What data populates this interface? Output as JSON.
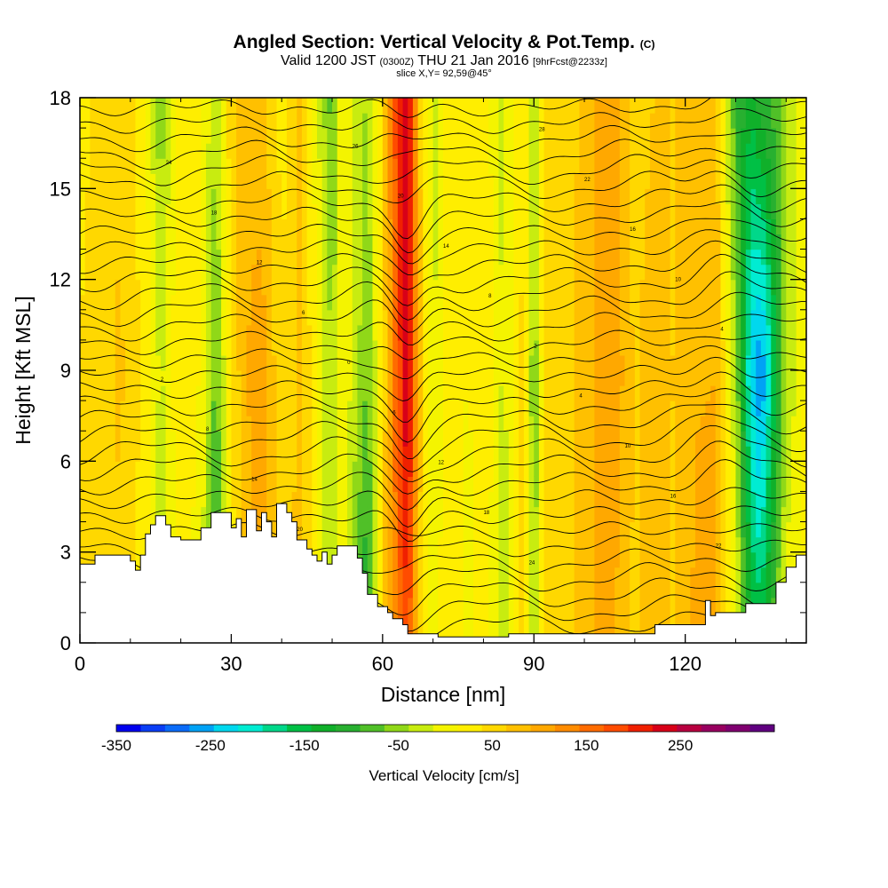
{
  "chart_data": {
    "type": "heatmap",
    "title": "Angled Section: Vertical Velocity & Pot.Temp.",
    "title_suffix": "(C)",
    "subtitle": {
      "valid_prefix": "Valid 1200 JST",
      "utc": "(0300Z)",
      "date": "THU 21 Jan 2016",
      "forecast": "[9hrFcst@2233z]"
    },
    "slice_label": "slice X,Y= 92,59@45°",
    "xlabel": "Distance [nm]",
    "ylabel": "Height [Kft MSL]",
    "xlim": [
      0,
      144
    ],
    "ylim": [
      0,
      18
    ],
    "x_ticks": [
      "0",
      "30",
      "60",
      "90",
      "120"
    ],
    "x_tick_values": [
      0,
      30,
      60,
      90,
      120
    ],
    "y_ticks": [
      "0",
      "3",
      "6",
      "9",
      "12",
      "15",
      "18"
    ],
    "y_tick_values": [
      0,
      3,
      6,
      9,
      12,
      15,
      18
    ],
    "colorbar": {
      "label": "Vertical Velocity [cm/s]",
      "tick_labels": [
        "-350",
        "-250",
        "-150",
        "-50",
        "50",
        "150",
        "250"
      ],
      "tick_values": [
        -350,
        -250,
        -150,
        -50,
        50,
        150,
        250
      ],
      "range": [
        -350,
        350
      ],
      "colors": [
        "#0000ee",
        "#0a3ef5",
        "#0b6cf8",
        "#00a2f5",
        "#00d8ee",
        "#00ecd2",
        "#00d88a",
        "#00c045",
        "#10b02a",
        "#28b030",
        "#50c028",
        "#90d818",
        "#c8ec10",
        "#f4f400",
        "#ffee00",
        "#ffd800",
        "#ffc000",
        "#ffa800",
        "#ff8c00",
        "#ff6c00",
        "#ff4c00",
        "#f02000",
        "#d80018",
        "#b80040",
        "#980060",
        "#800070",
        "#600080"
      ]
    },
    "terrain_kft": [
      [
        0,
        2.6
      ],
      [
        3,
        2.6
      ],
      [
        3,
        2.9
      ],
      [
        10,
        2.9
      ],
      [
        10,
        2.7
      ],
      [
        11,
        2.7
      ],
      [
        11,
        2.4
      ],
      [
        12,
        2.4
      ],
      [
        12,
        2.9
      ],
      [
        13,
        2.9
      ],
      [
        13,
        3.6
      ],
      [
        14,
        3.6
      ],
      [
        14,
        3.9
      ],
      [
        15,
        3.9
      ],
      [
        15,
        4.2
      ],
      [
        17,
        4.2
      ],
      [
        17,
        3.9
      ],
      [
        18,
        3.9
      ],
      [
        18,
        3.5
      ],
      [
        20,
        3.5
      ],
      [
        20,
        3.4
      ],
      [
        24,
        3.4
      ],
      [
        24,
        3.8
      ],
      [
        26,
        3.8
      ],
      [
        26,
        4.3
      ],
      [
        30,
        4.3
      ],
      [
        30,
        3.8
      ],
      [
        31,
        3.8
      ],
      [
        31,
        4.1
      ],
      [
        32,
        4.1
      ],
      [
        32,
        3.5
      ],
      [
        33,
        3.5
      ],
      [
        33,
        4.4
      ],
      [
        35,
        4.4
      ],
      [
        35,
        3.7
      ],
      [
        36,
        3.7
      ],
      [
        36,
        4.3
      ],
      [
        37,
        4.3
      ],
      [
        37,
        4.0
      ],
      [
        38,
        4.0
      ],
      [
        38,
        3.5
      ],
      [
        39,
        3.5
      ],
      [
        39,
        4.6
      ],
      [
        41,
        4.6
      ],
      [
        41,
        4.3
      ],
      [
        42,
        4.3
      ],
      [
        42,
        4.0
      ],
      [
        43,
        4.0
      ],
      [
        43,
        3.4
      ],
      [
        45,
        3.4
      ],
      [
        45,
        3.1
      ],
      [
        46,
        3.1
      ],
      [
        46,
        2.9
      ],
      [
        47,
        2.9
      ],
      [
        47,
        2.7
      ],
      [
        48,
        2.7
      ],
      [
        48,
        3.0
      ],
      [
        49,
        3.0
      ],
      [
        49,
        2.6
      ],
      [
        50,
        2.6
      ],
      [
        50,
        2.9
      ],
      [
        51,
        2.9
      ],
      [
        51,
        3.2
      ],
      [
        55,
        3.2
      ],
      [
        55,
        2.8
      ],
      [
        56,
        2.8
      ],
      [
        56,
        2.3
      ],
      [
        57,
        2.3
      ],
      [
        57,
        1.6
      ],
      [
        59,
        1.6
      ],
      [
        59,
        1.2
      ],
      [
        61,
        1.2
      ],
      [
        61,
        1.0
      ],
      [
        62,
        1.0
      ],
      [
        62,
        0.8
      ],
      [
        64,
        0.8
      ],
      [
        64,
        0.6
      ],
      [
        65,
        0.6
      ],
      [
        65,
        0.3
      ],
      [
        71,
        0.3
      ],
      [
        71,
        0.2
      ],
      [
        85,
        0.2
      ],
      [
        85,
        0.3
      ],
      [
        114,
        0.3
      ],
      [
        114,
        0.6
      ],
      [
        124,
        0.6
      ],
      [
        124,
        1.4
      ],
      [
        125,
        1.4
      ],
      [
        125,
        0.9
      ],
      [
        126,
        0.9
      ],
      [
        126,
        1.0
      ],
      [
        132,
        1.0
      ],
      [
        132,
        1.3
      ],
      [
        138,
        1.3
      ],
      [
        138,
        2.0
      ],
      [
        140,
        2.0
      ],
      [
        140,
        2.5
      ],
      [
        142,
        2.5
      ],
      [
        142,
        2.9
      ],
      [
        144,
        2.9
      ]
    ],
    "velocity_field": {
      "x_nm": [
        0,
        8,
        13,
        16,
        20,
        24,
        27,
        30,
        33,
        36,
        40,
        44,
        46,
        50,
        52,
        55,
        57,
        60,
        63,
        65,
        67,
        70,
        73,
        77,
        80,
        84,
        88,
        90,
        92,
        97,
        101,
        103,
        106,
        110,
        115,
        118,
        121,
        126,
        130,
        133,
        135,
        137,
        140,
        144
      ],
      "w_cms_low": [
        40,
        60,
        20,
        -30,
        10,
        0,
        -140,
        20,
        70,
        110,
        60,
        80,
        30,
        -40,
        10,
        -90,
        -120,
        60,
        150,
        190,
        70,
        -10,
        40,
        0,
        30,
        -30,
        50,
        -60,
        40,
        60,
        80,
        110,
        90,
        60,
        80,
        60,
        90,
        100,
        0,
        -120,
        -150,
        -90,
        0,
        20
      ],
      "w_cms_mid": [
        40,
        70,
        30,
        -20,
        40,
        10,
        -70,
        40,
        90,
        110,
        40,
        70,
        30,
        -40,
        10,
        -30,
        -70,
        40,
        170,
        260,
        90,
        -20,
        40,
        10,
        40,
        -20,
        50,
        -70,
        40,
        60,
        80,
        110,
        110,
        60,
        90,
        60,
        90,
        90,
        -40,
        -230,
        -280,
        -190,
        -40,
        20
      ],
      "w_cms_high": [
        30,
        60,
        20,
        -60,
        40,
        20,
        -40,
        60,
        80,
        70,
        30,
        70,
        20,
        -80,
        20,
        -30,
        -40,
        50,
        200,
        240,
        80,
        -30,
        40,
        20,
        30,
        -20,
        40,
        -30,
        40,
        60,
        70,
        100,
        100,
        50,
        70,
        60,
        90,
        80,
        -90,
        -140,
        -100,
        -90,
        -40,
        20
      ]
    },
    "isentropes": {
      "count": 34,
      "labels": [
        "28",
        "26",
        "24",
        "22",
        "20",
        "18",
        "16",
        "14",
        "12",
        "10",
        "8",
        "6",
        "4",
        "2",
        "0",
        "2",
        "4",
        "6",
        "8",
        "10",
        "12",
        "14",
        "16",
        "18",
        "20",
        "22",
        "24",
        "26",
        "28"
      ]
    }
  }
}
